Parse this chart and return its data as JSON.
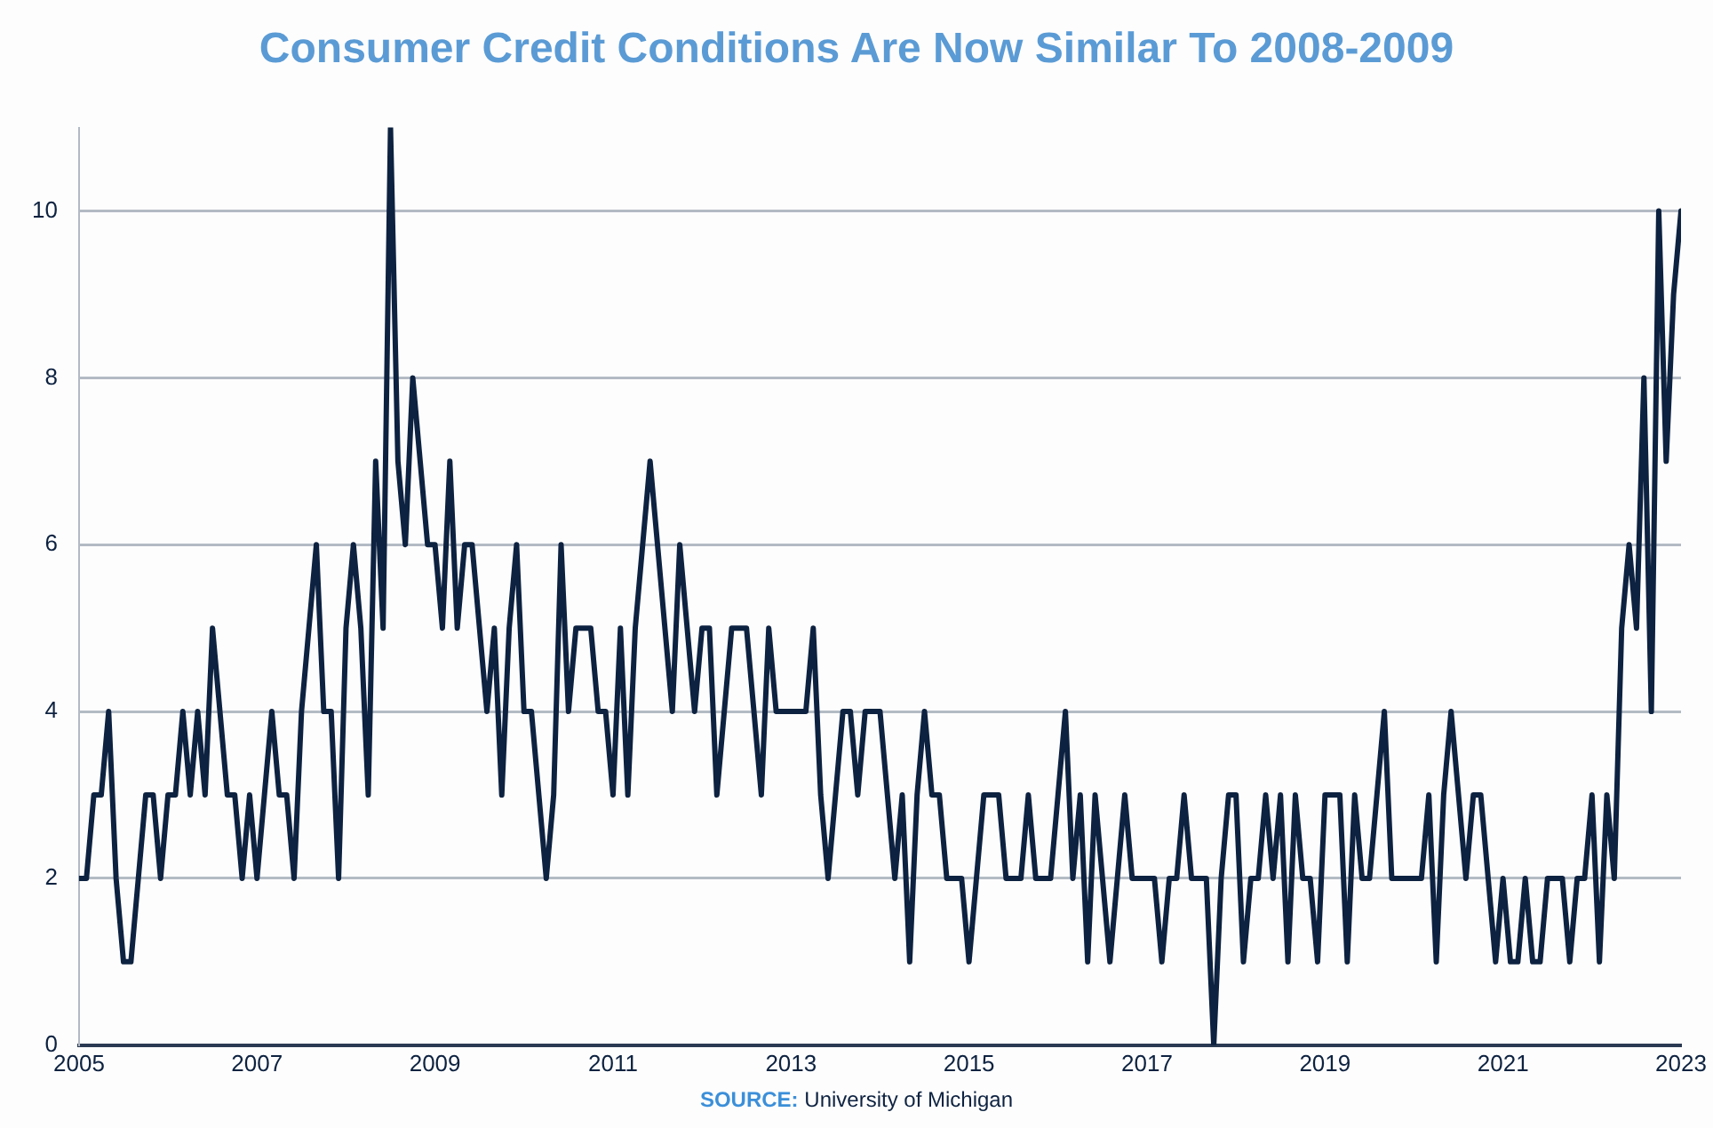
{
  "chart_data": {
    "type": "line",
    "title": "Consumer Credit Conditions Are Now Similar To 2008-2009",
    "x": [
      "2005-01",
      "2005-02",
      "2005-03",
      "2005-04",
      "2005-05",
      "2005-06",
      "2005-07",
      "2005-08",
      "2005-09",
      "2005-10",
      "2005-11",
      "2005-12",
      "2006-01",
      "2006-02",
      "2006-03",
      "2006-04",
      "2006-05",
      "2006-06",
      "2006-07",
      "2006-08",
      "2006-09",
      "2006-10",
      "2006-11",
      "2006-12",
      "2007-01",
      "2007-02",
      "2007-03",
      "2007-04",
      "2007-05",
      "2007-06",
      "2007-07",
      "2007-08",
      "2007-09",
      "2007-10",
      "2007-11",
      "2007-12",
      "2008-01",
      "2008-02",
      "2008-03",
      "2008-04",
      "2008-05",
      "2008-06",
      "2008-07",
      "2008-08",
      "2008-09",
      "2008-10",
      "2008-11",
      "2008-12",
      "2009-01",
      "2009-02",
      "2009-03",
      "2009-04",
      "2009-05",
      "2009-06",
      "2009-07",
      "2009-08",
      "2009-09",
      "2009-10",
      "2009-11",
      "2009-12",
      "2010-01",
      "2010-02",
      "2010-03",
      "2010-04",
      "2010-05",
      "2010-06",
      "2010-07",
      "2010-08",
      "2010-09",
      "2010-10",
      "2010-11",
      "2010-12",
      "2011-01",
      "2011-02",
      "2011-03",
      "2011-04",
      "2011-05",
      "2011-06",
      "2011-07",
      "2011-08",
      "2011-09",
      "2011-10",
      "2011-11",
      "2011-12",
      "2012-01",
      "2012-02",
      "2012-03",
      "2012-04",
      "2012-05",
      "2012-06",
      "2012-07",
      "2012-08",
      "2012-09",
      "2012-10",
      "2012-11",
      "2012-12",
      "2013-01",
      "2013-02",
      "2013-03",
      "2013-04",
      "2013-05",
      "2013-06",
      "2013-07",
      "2013-08",
      "2013-09",
      "2013-10",
      "2013-11",
      "2013-12",
      "2014-01",
      "2014-02",
      "2014-03",
      "2014-04",
      "2014-05",
      "2014-06",
      "2014-07",
      "2014-08",
      "2014-09",
      "2014-10",
      "2014-11",
      "2014-12",
      "2015-01",
      "2015-02",
      "2015-03",
      "2015-04",
      "2015-05",
      "2015-06",
      "2015-07",
      "2015-08",
      "2015-09",
      "2015-10",
      "2015-11",
      "2015-12",
      "2016-01",
      "2016-02",
      "2016-03",
      "2016-04",
      "2016-05",
      "2016-06",
      "2016-07",
      "2016-08",
      "2016-09",
      "2016-10",
      "2016-11",
      "2016-12",
      "2017-01",
      "2017-02",
      "2017-03",
      "2017-04",
      "2017-05",
      "2017-06",
      "2017-07",
      "2017-08",
      "2017-09",
      "2017-10",
      "2017-11",
      "2017-12",
      "2018-01",
      "2018-02",
      "2018-03",
      "2018-04",
      "2018-05",
      "2018-06",
      "2018-07",
      "2018-08",
      "2018-09",
      "2018-10",
      "2018-11",
      "2018-12",
      "2019-01",
      "2019-02",
      "2019-03",
      "2019-04",
      "2019-05",
      "2019-06",
      "2019-07",
      "2019-08",
      "2019-09",
      "2019-10",
      "2019-11",
      "2019-12",
      "2020-01",
      "2020-02",
      "2020-03",
      "2020-04",
      "2020-05",
      "2020-06",
      "2020-07",
      "2020-08",
      "2020-09",
      "2020-10",
      "2020-11",
      "2020-12",
      "2021-01",
      "2021-02",
      "2021-03",
      "2021-04",
      "2021-05",
      "2021-06",
      "2021-07",
      "2021-08",
      "2021-09",
      "2021-10",
      "2021-11",
      "2021-12",
      "2022-01",
      "2022-02",
      "2022-03",
      "2022-04",
      "2022-05",
      "2022-06",
      "2022-07",
      "2022-08",
      "2022-09",
      "2022-10",
      "2022-11",
      "2022-12",
      "2023-01"
    ],
    "series": [
      {
        "color": "#0d2240",
        "values": [
          2,
          2,
          3,
          3,
          4,
          2,
          1,
          1,
          2,
          3,
          3,
          2,
          3,
          3,
          4,
          3,
          4,
          3,
          5,
          4,
          3,
          3,
          2,
          3,
          2,
          3,
          4,
          3,
          3,
          2,
          4,
          5,
          6,
          4,
          4,
          2,
          5,
          6,
          5,
          3,
          7,
          5,
          11,
          7,
          6,
          8,
          7,
          6,
          6,
          5,
          7,
          5,
          6,
          6,
          5,
          4,
          5,
          3,
          5,
          6,
          4,
          4,
          3,
          2,
          3,
          6,
          4,
          5,
          5,
          5,
          4,
          4,
          3,
          5,
          3,
          5,
          6,
          7,
          6,
          5,
          4,
          6,
          5,
          4,
          5,
          5,
          3,
          4,
          5,
          5,
          5,
          4,
          3,
          5,
          4,
          4,
          4,
          4,
          4,
          5,
          3,
          2,
          3,
          4,
          4,
          3,
          4,
          4,
          4,
          3,
          2,
          3,
          1,
          3,
          4,
          3,
          3,
          2,
          2,
          2,
          1,
          2,
          3,
          3,
          3,
          2,
          2,
          2,
          3,
          2,
          2,
          2,
          3,
          4,
          2,
          3,
          1,
          3,
          2,
          1,
          2,
          3,
          2,
          2,
          2,
          2,
          1,
          2,
          2,
          3,
          2,
          2,
          2,
          0,
          2,
          3,
          3,
          1,
          2,
          2,
          3,
          2,
          3,
          1,
          3,
          2,
          2,
          1,
          3,
          3,
          3,
          1,
          3,
          2,
          2,
          3,
          4,
          2,
          2,
          2,
          2,
          2,
          3,
          1,
          3,
          4,
          3,
          2,
          3,
          3,
          2,
          1,
          2,
          1,
          1,
          2,
          1,
          1,
          2,
          2,
          2,
          1,
          2,
          2,
          3,
          1,
          3,
          2,
          5,
          6,
          5,
          8,
          4,
          10,
          7,
          9,
          10
        ]
      }
    ],
    "xlim": [
      "2005-01",
      "2023-01"
    ],
    "xticks": [
      "2005",
      "2007",
      "2009",
      "2011",
      "2013",
      "2015",
      "2017",
      "2019",
      "2021",
      "2023"
    ],
    "ylim": [
      0,
      11
    ],
    "yticks": [
      0,
      2,
      4,
      6,
      8,
      10
    ],
    "grid": "y",
    "marker": "none",
    "line_style": "solid",
    "legend": false,
    "annotations": [
      "SOURCE: University of Michigan"
    ]
  }
}
